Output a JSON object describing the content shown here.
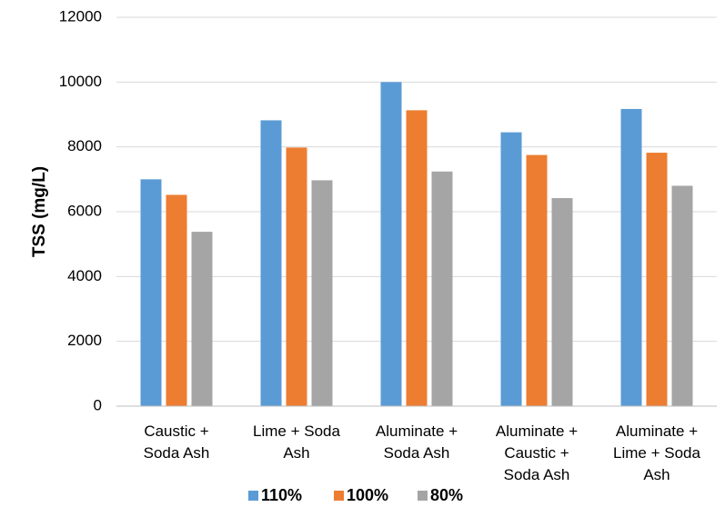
{
  "chart_data": {
    "type": "bar",
    "title": "",
    "xlabel": "",
    "ylabel": "TSS (mg/L)",
    "ylim": [
      0,
      12000
    ],
    "yticks": [
      0,
      2000,
      4000,
      6000,
      8000,
      10000,
      12000
    ],
    "grid": true,
    "legend_position": "bottom",
    "categories": [
      [
        "Caustic +",
        "Soda Ash"
      ],
      [
        "Lime + Soda",
        "Ash"
      ],
      [
        "Aluminate +",
        "Soda Ash"
      ],
      [
        "Aluminate +",
        "Caustic +",
        "Soda Ash"
      ],
      [
        "Aluminate +",
        "Lime + Soda",
        "Ash"
      ]
    ],
    "series": [
      {
        "name": "110%",
        "color": "#5b9bd5",
        "values": [
          7000,
          8820,
          10000,
          8450,
          9170
        ]
      },
      {
        "name": "100%",
        "color": "#ed7d31",
        "values": [
          6520,
          7980,
          9130,
          7750,
          7820
        ]
      },
      {
        "name": "80%",
        "color": "#a5a5a5",
        "values": [
          5380,
          6970,
          7240,
          6420,
          6800
        ]
      }
    ]
  }
}
